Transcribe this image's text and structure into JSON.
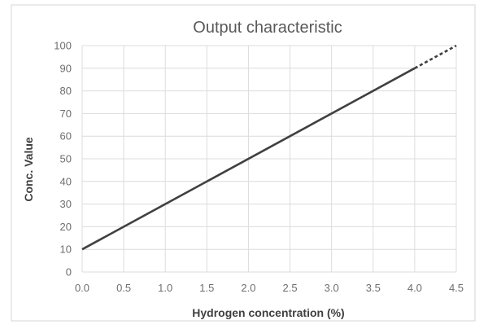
{
  "chart_data": {
    "type": "line",
    "title": "Output characteristic",
    "xlabel": "Hydrogen concentration (%)",
    "ylabel": "Conc. Value",
    "xlim": [
      0,
      4.5
    ],
    "ylim": [
      0,
      100
    ],
    "x_ticks": [
      "0.0",
      "0.5",
      "1.0",
      "1.5",
      "2.0",
      "2.5",
      "3.0",
      "3.5",
      "4.0",
      "4.5"
    ],
    "y_ticks": [
      "0",
      "10",
      "20",
      "30",
      "40",
      "50",
      "60",
      "70",
      "80",
      "90",
      "100"
    ],
    "grid": true,
    "legend": "none",
    "series": [
      {
        "style": "solid",
        "color": "#404040",
        "x": [
          0,
          4.0
        ],
        "y": [
          10,
          90
        ]
      },
      {
        "style": "dashed",
        "color": "#404040",
        "x": [
          4.0,
          4.5
        ],
        "y": [
          90,
          100
        ]
      }
    ]
  }
}
